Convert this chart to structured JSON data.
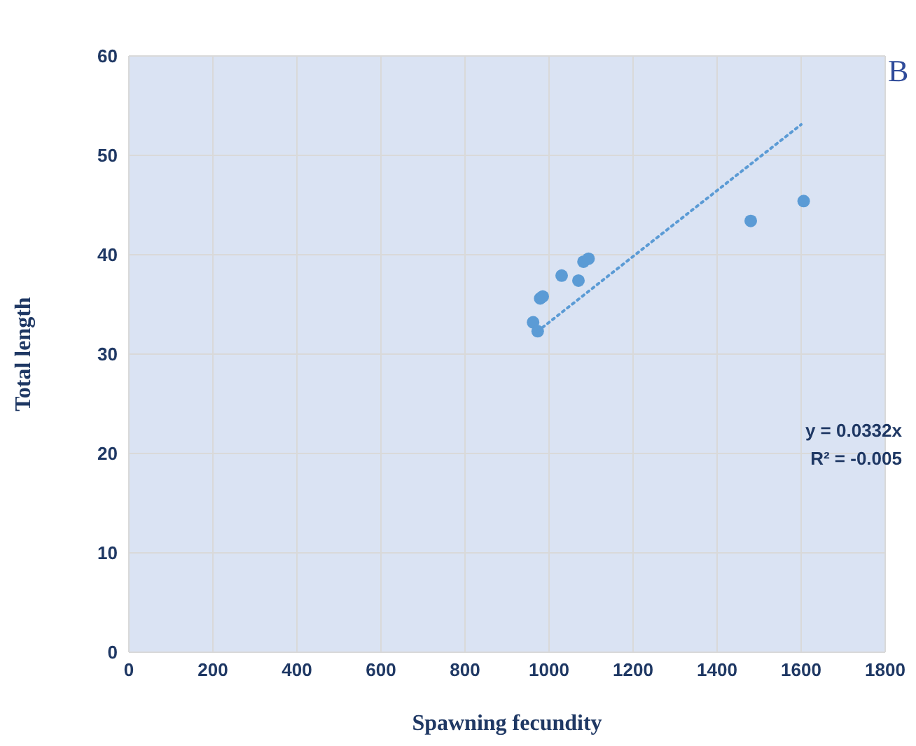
{
  "chart_data": {
    "type": "scatter",
    "xlabel": "Spawning fecundity",
    "ylabel": "Total length",
    "xlim": [
      0,
      1800
    ],
    "xticks": [
      0,
      200,
      400,
      600,
      800,
      1000,
      1200,
      1400,
      1600,
      1800
    ],
    "ylim": [
      0,
      60
    ],
    "yticks": [
      0,
      10,
      20,
      30,
      40,
      50,
      60
    ],
    "grid": true,
    "series": [
      {
        "color": "#5b9bd5",
        "marker": "circle",
        "x": [
          962,
          973,
          979,
          985,
          1030,
          1070,
          1082,
          1094,
          1480,
          1606
        ],
        "values": [
          33.2,
          32.3,
          35.6,
          35.8,
          37.9,
          37.4,
          39.3,
          39.6,
          43.4,
          45.4
        ]
      },
      {
        "type": "line",
        "color": "#5b9bd5",
        "line_style": "dotted",
        "marker": "none",
        "x": [
          973,
          1600
        ],
        "values": [
          32.3,
          53.1
        ]
      }
    ],
    "annotations": [
      "B",
      "y = 0.0332x",
      "R² = -0.005"
    ]
  }
}
